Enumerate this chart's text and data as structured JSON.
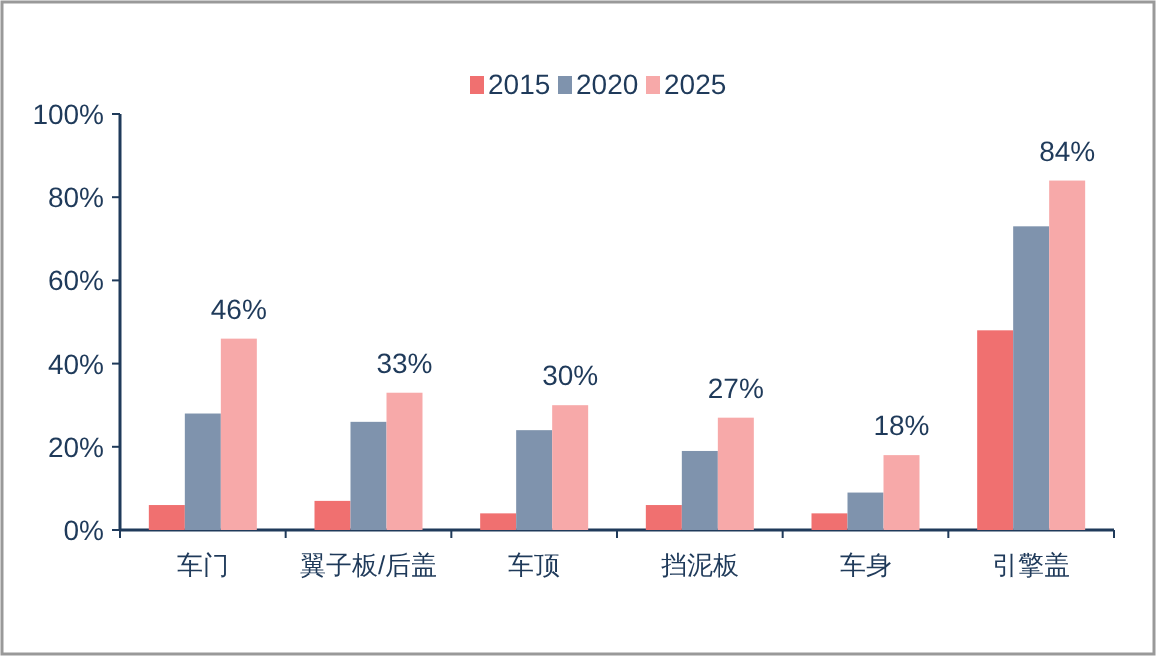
{
  "chart_data": {
    "type": "bar",
    "categories": [
      "车门",
      "翼子板/后盖",
      "车顶",
      "挡泥板",
      "车身",
      "引擎盖"
    ],
    "series": [
      {
        "name": "2015",
        "color": "#f07070",
        "values": [
          6,
          7,
          4,
          6,
          4,
          48
        ]
      },
      {
        "name": "2020",
        "color": "#7f93ad",
        "values": [
          28,
          26,
          24,
          19,
          9,
          73
        ]
      },
      {
        "name": "2025",
        "color": "#f7a9a9",
        "values": [
          46,
          33,
          30,
          27,
          18,
          84
        ],
        "value_labels": [
          "46%",
          "33%",
          "30%",
          "27%",
          "18%",
          "84%"
        ]
      }
    ],
    "ylim": [
      0,
      100
    ],
    "yticks": [
      {
        "value": 0,
        "label": "0%"
      },
      {
        "value": 20,
        "label": "20%"
      },
      {
        "value": 40,
        "label": "40%"
      },
      {
        "value": 60,
        "label": "60%"
      },
      {
        "value": 80,
        "label": "80%"
      },
      {
        "value": 100,
        "label": "100%"
      }
    ],
    "legend": "top",
    "grid": false
  }
}
